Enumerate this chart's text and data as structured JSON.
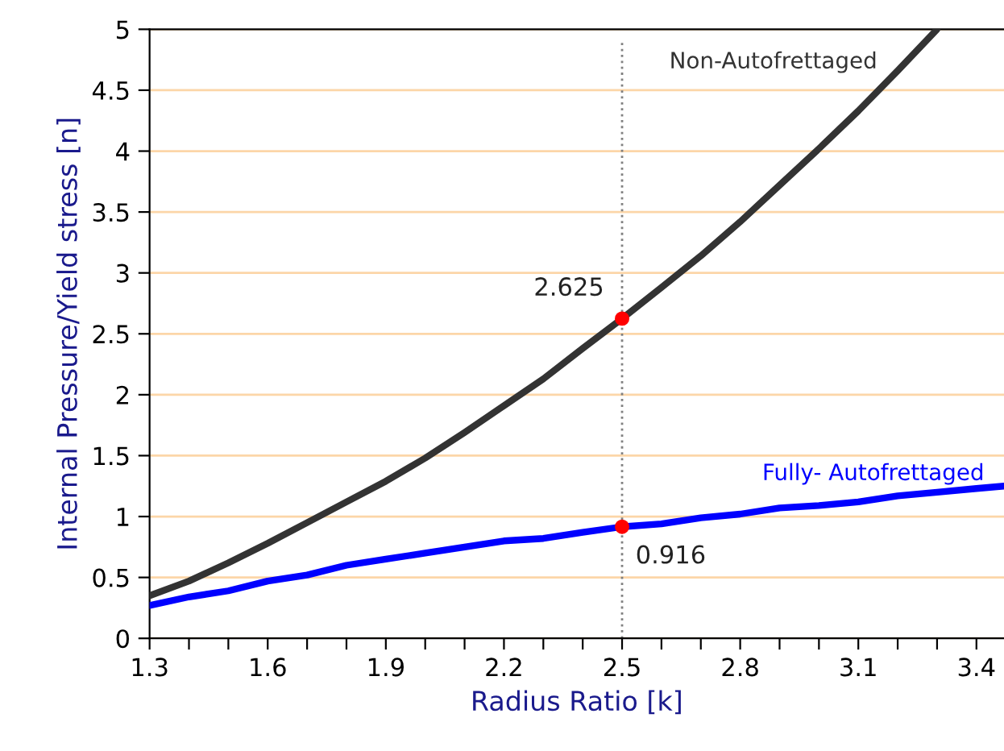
{
  "chart_data": {
    "type": "line",
    "xlabel": "Radius Ratio [k]",
    "ylabel": "Internal Pressure/Yield stress [n]",
    "xlim": [
      1.3,
      3.47
    ],
    "ylim": [
      0,
      5
    ],
    "xticks": [
      1.3,
      {
        "value": 1.4,
        "label": null
      },
      {
        "value": 1.5,
        "label": null
      },
      1.6,
      {
        "value": 1.7,
        "label": null
      },
      {
        "value": 1.8,
        "label": null
      },
      1.9,
      {
        "value": 2.0,
        "label": null
      },
      {
        "value": 2.1,
        "label": null
      },
      2.2,
      {
        "value": 2.3,
        "label": null
      },
      {
        "value": 2.4,
        "label": null
      },
      2.5,
      {
        "value": 2.6,
        "label": null
      },
      {
        "value": 2.7,
        "label": null
      },
      2.8,
      {
        "value": 2.9,
        "label": null
      },
      {
        "value": 3.0,
        "label": null
      },
      3.1,
      {
        "value": 3.2,
        "label": null
      },
      {
        "value": 3.3,
        "label": null
      },
      3.4
    ],
    "yticks": [
      0,
      0.5,
      1,
      1.5,
      2,
      2.5,
      3,
      3.5,
      4,
      4.5,
      5
    ],
    "grid": "y",
    "series": [
      {
        "name": "Non-Autofrettaged",
        "color": "#333333",
        "x": [
          1.3,
          1.4,
          1.5,
          1.6,
          1.7,
          1.8,
          1.9,
          2.0,
          2.1,
          2.2,
          2.3,
          2.4,
          2.5,
          2.6,
          2.7,
          2.8,
          2.9,
          3.0,
          3.1,
          3.2,
          3.3
        ],
        "values": [
          0.35,
          0.47,
          0.62,
          0.78,
          0.95,
          1.12,
          1.29,
          1.48,
          1.69,
          1.91,
          2.13,
          2.38,
          2.625,
          2.88,
          3.14,
          3.42,
          3.72,
          4.02,
          4.33,
          4.66,
          5.0
        ]
      },
      {
        "name": "Fully- Autofrettaged",
        "color": "#0000ff",
        "x": [
          1.3,
          1.4,
          1.5,
          1.6,
          1.7,
          1.8,
          1.9,
          2.0,
          2.1,
          2.2,
          2.3,
          2.4,
          2.5,
          2.6,
          2.7,
          2.8,
          2.9,
          3.0,
          3.1,
          3.2,
          3.3,
          3.4,
          3.47
        ],
        "values": [
          0.27,
          0.34,
          0.39,
          0.47,
          0.52,
          0.6,
          0.65,
          0.7,
          0.75,
          0.8,
          0.82,
          0.87,
          0.916,
          0.94,
          0.99,
          1.02,
          1.07,
          1.09,
          1.12,
          1.17,
          1.2,
          1.23,
          1.25
        ]
      },
      {
        "type": "scatter",
        "color": "#ff0000",
        "x": [
          2.5,
          2.5
        ],
        "values": [
          2.625,
          0.916
        ]
      }
    ],
    "ref_lines": [
      {
        "axis": "x",
        "value": 2.5,
        "color": "#808080",
        "line_style": "dotted"
      }
    ],
    "annotations": [
      {
        "text": "2.625",
        "x": 2.5,
        "y": 2.625
      },
      {
        "text": "0.916",
        "x": 2.5,
        "y": 0.916
      }
    ]
  }
}
